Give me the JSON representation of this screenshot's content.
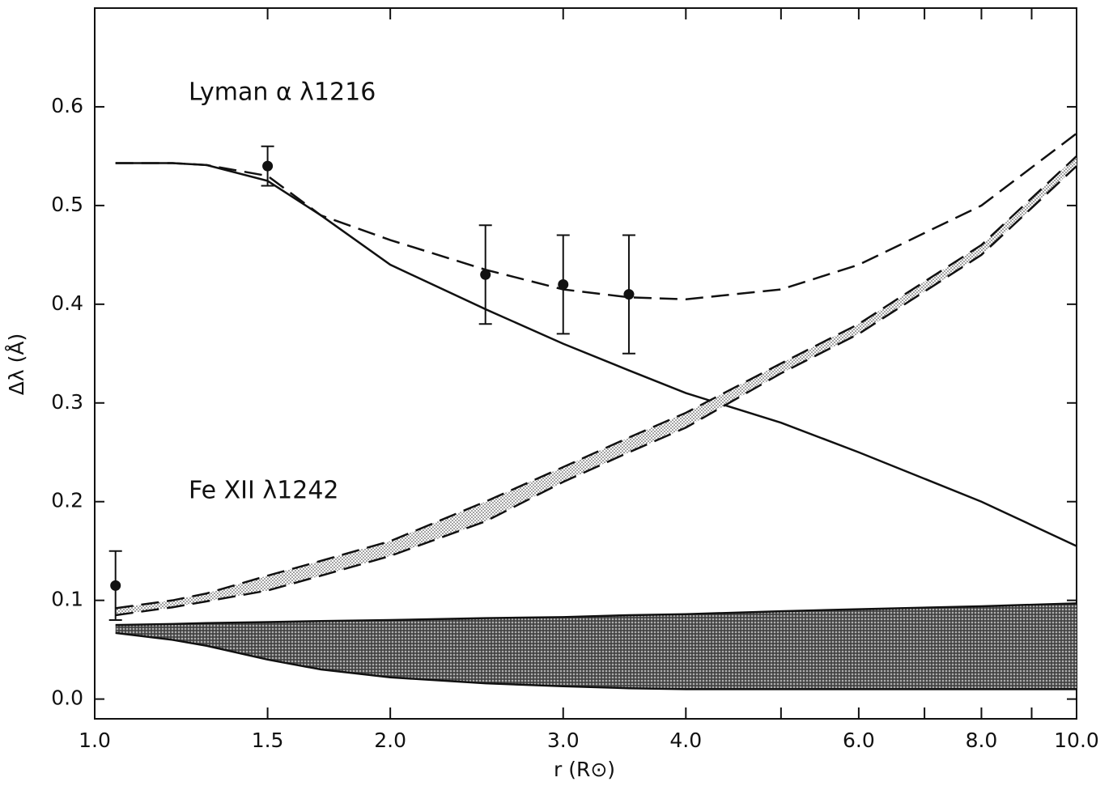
{
  "chart_data": {
    "type": "line",
    "annotations": [
      "Lyman α  λ1216",
      "Fe XII  λ1242"
    ],
    "xlabel": "r (R⊙)",
    "ylabel": "Δλ (Å)",
    "xscale": "log",
    "xlim": [
      1.0,
      10.0
    ],
    "ylim": [
      -0.02,
      0.7
    ],
    "xticks": [
      {
        "value": 1.0,
        "label": "1.0"
      },
      1.5,
      {
        "value": 2.0,
        "label": "2.0"
      },
      {
        "value": 3.0,
        "label": "3.0"
      },
      {
        "value": 4.0,
        "label": "4.0"
      },
      {
        "value": 6.0,
        "label": "6.0"
      },
      {
        "value": 8.0,
        "label": "8.0"
      },
      {
        "value": 10.0,
        "label": "10.0"
      }
    ],
    "xminorticks": [
      5,
      7,
      9
    ],
    "yticks": [
      {
        "value": 0,
        "label": "0.0"
      },
      0.1,
      0.2,
      0.3,
      0.4,
      0.5,
      0.6
    ],
    "x": [
      1.05,
      1.2,
      1.3,
      1.5,
      1.7,
      2.0,
      2.5,
      3.0,
      3.5,
      4.0,
      5.0,
      6.0,
      8.0,
      10.0
    ],
    "series": [
      {
        "kind": "line",
        "dash": false,
        "color": "#111111",
        "values": [
          0.543,
          0.543,
          0.541,
          0.525,
          0.49,
          0.44,
          0.395,
          0.36,
          0.333,
          0.31,
          0.28,
          0.25,
          0.2,
          0.155
        ]
      },
      {
        "kind": "line",
        "dash": true,
        "color": "#111111",
        "values": [
          0.543,
          0.543,
          0.541,
          0.53,
          0.49,
          0.465,
          0.435,
          0.415,
          0.407,
          0.405,
          0.415,
          0.44,
          0.5,
          0.573
        ]
      },
      {
        "kind": "band",
        "dash": true,
        "color": "#111111",
        "pattern": "light",
        "values": [
          0.092,
          0.1,
          0.107,
          0.125,
          0.14,
          0.16,
          0.2,
          0.235,
          0.265,
          0.29,
          0.34,
          0.38,
          0.46,
          0.55
        ],
        "lower": [
          0.085,
          0.093,
          0.099,
          0.11,
          0.125,
          0.145,
          0.18,
          0.22,
          0.25,
          0.275,
          0.33,
          0.37,
          0.45,
          0.54
        ]
      },
      {
        "kind": "band",
        "dash": false,
        "color": "#111111",
        "pattern": "dark",
        "values": [
          0.075,
          0.076,
          0.077,
          0.078,
          0.079,
          0.08,
          0.082,
          0.083,
          0.085,
          0.086,
          0.089,
          0.091,
          0.094,
          0.097
        ],
        "lower": [
          0.067,
          0.06,
          0.054,
          0.04,
          0.03,
          0.022,
          0.016,
          0.013,
          0.011,
          0.01,
          0.01,
          0.01,
          0.01,
          0.01
        ]
      },
      {
        "kind": "points",
        "color": "#111111",
        "x": [
          1.05,
          1.5,
          2.5,
          3.0,
          3.5
        ],
        "values": [
          0.115,
          0.54,
          0.43,
          0.42,
          0.41
        ],
        "errors": [
          0.035,
          0.02,
          0.05,
          0.05,
          0.06
        ]
      }
    ]
  }
}
